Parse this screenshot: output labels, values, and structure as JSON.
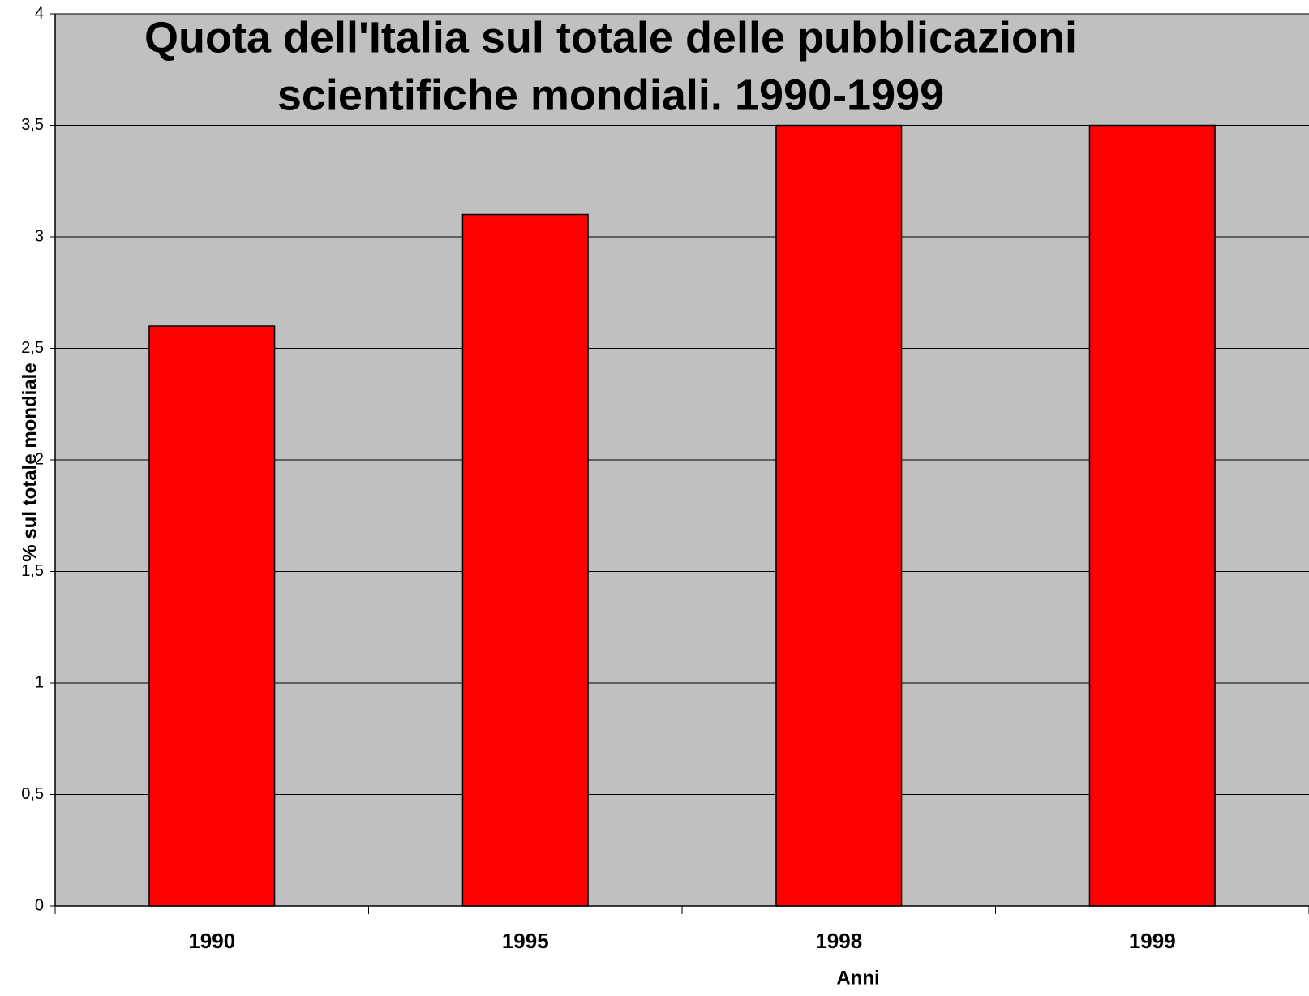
{
  "chart_data": {
    "type": "bar",
    "title": [
      "Quota dell'Italia sul totale delle pubblicazioni",
      "scientifiche mondiali. 1990-1999"
    ],
    "x_label": "Anni",
    "y_label": "% sul totale mondiale",
    "categories": [
      "1990",
      "1995",
      "1998",
      "1999"
    ],
    "values": [
      2.6,
      3.1,
      3.5,
      3.5
    ],
    "color": "#ff0000",
    "ylim": [
      0,
      4
    ],
    "yticks": [
      0,
      {
        "value": 0.5,
        "label": "0,5"
      },
      1,
      {
        "value": 1.5,
        "label": "1,5"
      },
      2,
      {
        "value": 2.5,
        "label": "2,5"
      },
      3,
      {
        "value": 3.5,
        "label": "3,5"
      },
      4
    ],
    "grid": true
  }
}
